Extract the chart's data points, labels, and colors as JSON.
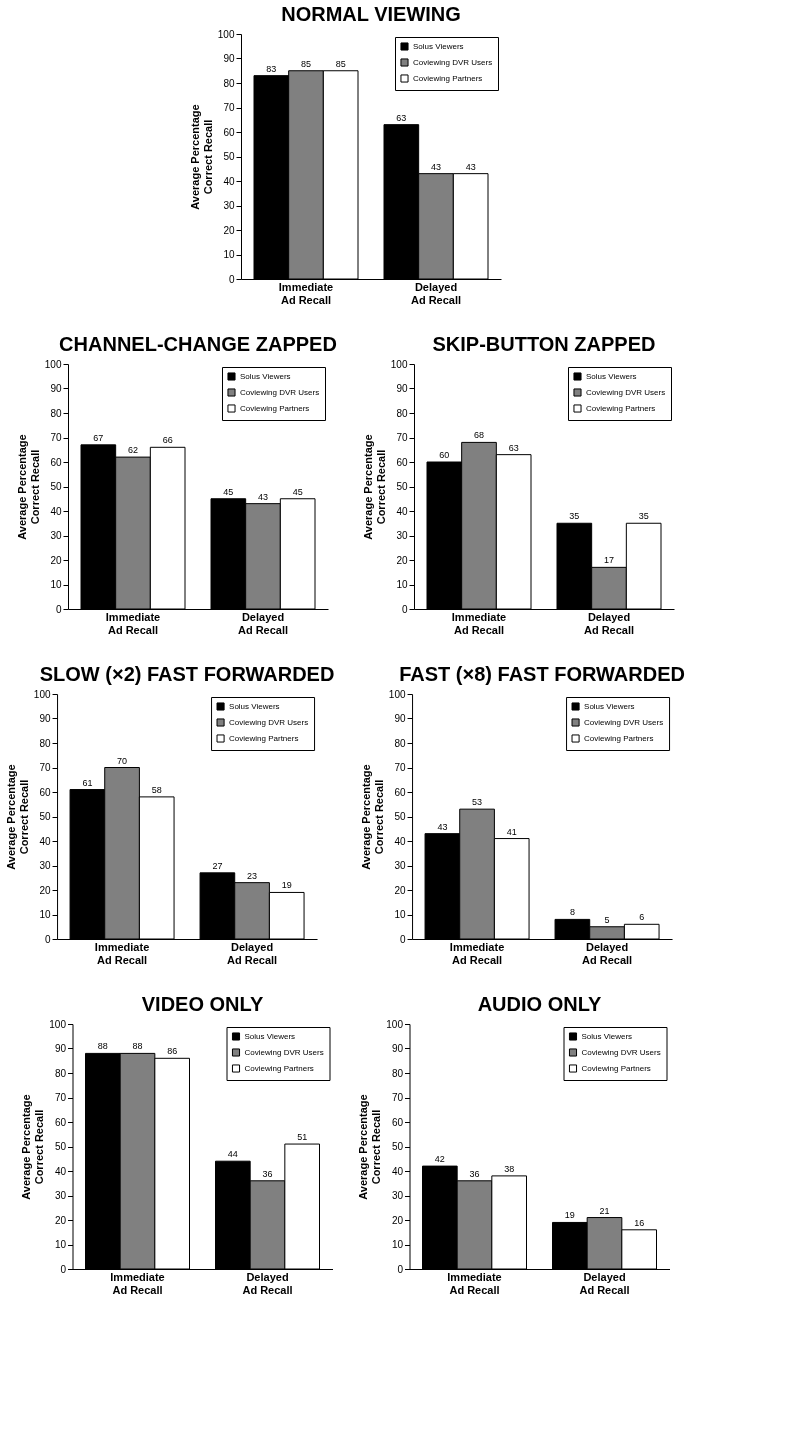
{
  "chart_data": [
    {
      "type": "bar",
      "title": "NORMAL VIEWING",
      "ylabel": "Average Percentage\nCorrect Recall",
      "categories": [
        "Immediate\nAd Recall",
        "Delayed\nAd Recall"
      ],
      "ylim": [
        0,
        100
      ],
      "yticks": [
        0,
        10,
        20,
        30,
        40,
        50,
        60,
        70,
        80,
        90,
        100
      ],
      "legend": "top right",
      "data_labels": true,
      "series": [
        {
          "name": "Solus Viewers",
          "color": "#000000",
          "values": [
            83,
            63
          ]
        },
        {
          "name": "Coviewing DVR Users",
          "color": "#808080",
          "values": [
            85,
            43
          ]
        },
        {
          "name": "Coviewing Partners",
          "color": "#ffffff",
          "values": [
            85,
            43
          ]
        }
      ]
    },
    {
      "type": "bar",
      "title": "CHANNEL-CHANGE ZAPPED",
      "ylabel": "Average Percentage\nCorrect Recall",
      "categories": [
        "Immediate\nAd Recall",
        "Delayed\nAd Recall"
      ],
      "ylim": [
        0,
        100
      ],
      "yticks": [
        0,
        10,
        20,
        30,
        40,
        50,
        60,
        70,
        80,
        90,
        100
      ],
      "legend": "top right",
      "data_labels": true,
      "series": [
        {
          "name": "Solus Viewers",
          "color": "#000000",
          "values": [
            67,
            45
          ]
        },
        {
          "name": "Coviewing DVR Users",
          "color": "#808080",
          "values": [
            62,
            43
          ]
        },
        {
          "name": "Coviewing Partners",
          "color": "#ffffff",
          "values": [
            66,
            45
          ]
        }
      ]
    },
    {
      "type": "bar",
      "title": "SKIP-BUTTON ZAPPED",
      "ylabel": "Average Percentage\nCorrect Recall",
      "categories": [
        "Immediate\nAd Recall",
        "Delayed\nAd Recall"
      ],
      "ylim": [
        0,
        100
      ],
      "yticks": [
        0,
        10,
        20,
        30,
        40,
        50,
        60,
        70,
        80,
        90,
        100
      ],
      "legend": "top right",
      "data_labels": true,
      "series": [
        {
          "name": "Solus Viewers",
          "color": "#000000",
          "values": [
            60,
            35
          ]
        },
        {
          "name": "Coviewing DVR Users",
          "color": "#808080",
          "values": [
            68,
            17
          ]
        },
        {
          "name": "Coviewing Partners",
          "color": "#ffffff",
          "values": [
            63,
            35
          ]
        }
      ]
    },
    {
      "type": "bar",
      "title": "SLOW (×2) FAST FORWARDED",
      "ylabel": "Average Percentage\nCorrect Recall",
      "categories": [
        "Immediate\nAd Recall",
        "Delayed\nAd Recall"
      ],
      "ylim": [
        0,
        100
      ],
      "yticks": [
        0,
        10,
        20,
        30,
        40,
        50,
        60,
        70,
        80,
        90,
        100
      ],
      "legend": "top right",
      "data_labels": true,
      "series": [
        {
          "name": "Solus Viewers",
          "color": "#000000",
          "values": [
            61,
            27
          ]
        },
        {
          "name": "Coviewing DVR Users",
          "color": "#808080",
          "values": [
            70,
            23
          ]
        },
        {
          "name": "Coviewing Partners",
          "color": "#ffffff",
          "values": [
            58,
            19
          ]
        }
      ]
    },
    {
      "type": "bar",
      "title": "FAST (×8) FAST FORWARDED",
      "ylabel": "Average Percentage\nCorrect Recall",
      "categories": [
        "Immediate\nAd Recall",
        "Delayed\nAd Recall"
      ],
      "ylim": [
        0,
        100
      ],
      "yticks": [
        0,
        10,
        20,
        30,
        40,
        50,
        60,
        70,
        80,
        90,
        100
      ],
      "legend": "top right",
      "data_labels": true,
      "series": [
        {
          "name": "Solus Viewers",
          "color": "#000000",
          "values": [
            43,
            8
          ]
        },
        {
          "name": "Coviewing DVR Users",
          "color": "#808080",
          "values": [
            53,
            5
          ]
        },
        {
          "name": "Coviewing Partners",
          "color": "#ffffff",
          "values": [
            41,
            6
          ]
        }
      ]
    },
    {
      "type": "bar",
      "title": "VIDEO ONLY",
      "ylabel": "Average Percentage\nCorrect Recall",
      "categories": [
        "Immediate\nAd Recall",
        "Delayed\nAd Recall"
      ],
      "ylim": [
        0,
        100
      ],
      "yticks": [
        0,
        10,
        20,
        30,
        40,
        50,
        60,
        70,
        80,
        90,
        100
      ],
      "legend": "top right",
      "data_labels": true,
      "series": [
        {
          "name": "Solus Viewers",
          "color": "#000000",
          "values": [
            88,
            44
          ]
        },
        {
          "name": "Coviewing DVR Users",
          "color": "#808080",
          "values": [
            88,
            36
          ]
        },
        {
          "name": "Coviewing Partners",
          "color": "#ffffff",
          "values": [
            86,
            51
          ]
        }
      ]
    },
    {
      "type": "bar",
      "title": "AUDIO ONLY",
      "ylabel": "Average Percentage\nCorrect Recall",
      "categories": [
        "Immediate\nAd Recall",
        "Delayed\nAd Recall"
      ],
      "ylim": [
        0,
        100
      ],
      "yticks": [
        0,
        10,
        20,
        30,
        40,
        50,
        60,
        70,
        80,
        90,
        100
      ],
      "legend": "top right",
      "data_labels": true,
      "series": [
        {
          "name": "Solus Viewers",
          "color": "#000000",
          "values": [
            42,
            19
          ]
        },
        {
          "name": "Coviewing DVR Users",
          "color": "#808080",
          "values": [
            36,
            21
          ]
        },
        {
          "name": "Coviewing Partners",
          "color": "#ffffff",
          "values": [
            38,
            16
          ]
        }
      ]
    }
  ]
}
